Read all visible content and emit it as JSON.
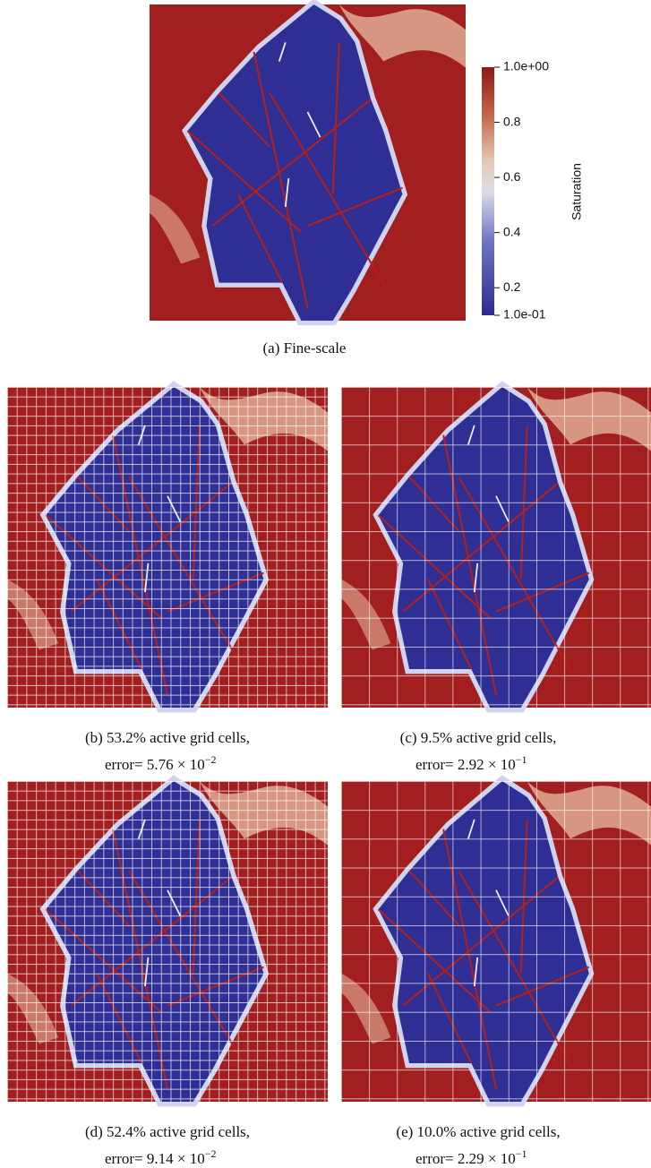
{
  "figure": {
    "panels": [
      {
        "caption": "(a) Fine-scale"
      },
      {
        "caption": "(b) 53.2% active grid cells,",
        "error": {
          "text": "error= 5.76 × 10",
          "exponent": "−2"
        }
      },
      {
        "caption": "(c) 9.5% active grid cells,",
        "error": {
          "text": "error= 2.92 × 10",
          "exponent": "−1"
        }
      },
      {
        "caption": "(d) 52.4% active grid cells,",
        "error": {
          "text": "error= 9.14 × 10",
          "exponent": "−2"
        }
      },
      {
        "caption": "(e) 10.0% active grid cells,",
        "error": {
          "text": "error= 2.29 × 10",
          "exponent": "−1"
        }
      }
    ],
    "colorbar": {
      "title": "Saturation",
      "range": [
        0.1,
        1
      ],
      "ticks": [
        {
          "value": 1,
          "label": "1.0e+00"
        },
        0.8,
        0.6,
        0.4,
        0.2,
        {
          "value": 0.1,
          "label": "1.0e-01"
        }
      ]
    }
  }
}
